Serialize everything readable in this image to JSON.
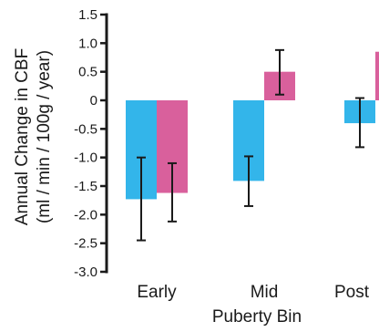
{
  "chart_data": {
    "type": "bar",
    "title": "",
    "xlabel": "Puberty Bin",
    "ylabel_line1": "Annual Change in CBF",
    "ylabel_line2": "(ml / min / 100g / year)",
    "categories": [
      "Early",
      "Mid",
      "Post"
    ],
    "ylim": [
      -3.0,
      1.5
    ],
    "yticks": [
      "1.5",
      "1.0",
      "0.5",
      "0",
      "-0.5",
      "-1.0",
      "-1.5",
      "-2.0",
      "-2.5",
      "-3.0"
    ],
    "ytick_values": [
      1.5,
      1.0,
      0.5,
      0,
      -0.5,
      -1.0,
      -1.5,
      -2.0,
      -2.5,
      -3.0
    ],
    "grid": false,
    "series": [
      {
        "color": "#33b5ea",
        "values": [
          -1.73,
          -1.41,
          -0.4
        ],
        "error_low": [
          -2.45,
          -1.85,
          -0.82
        ],
        "error_high": [
          -1.0,
          -0.98,
          0.04
        ]
      },
      {
        "color": "#d9609c",
        "values": [
          -1.62,
          0.5,
          0.85
        ],
        "error_low": [
          -2.12,
          0.1,
          null
        ],
        "error_high": [
          -1.1,
          0.88,
          null
        ]
      }
    ]
  }
}
